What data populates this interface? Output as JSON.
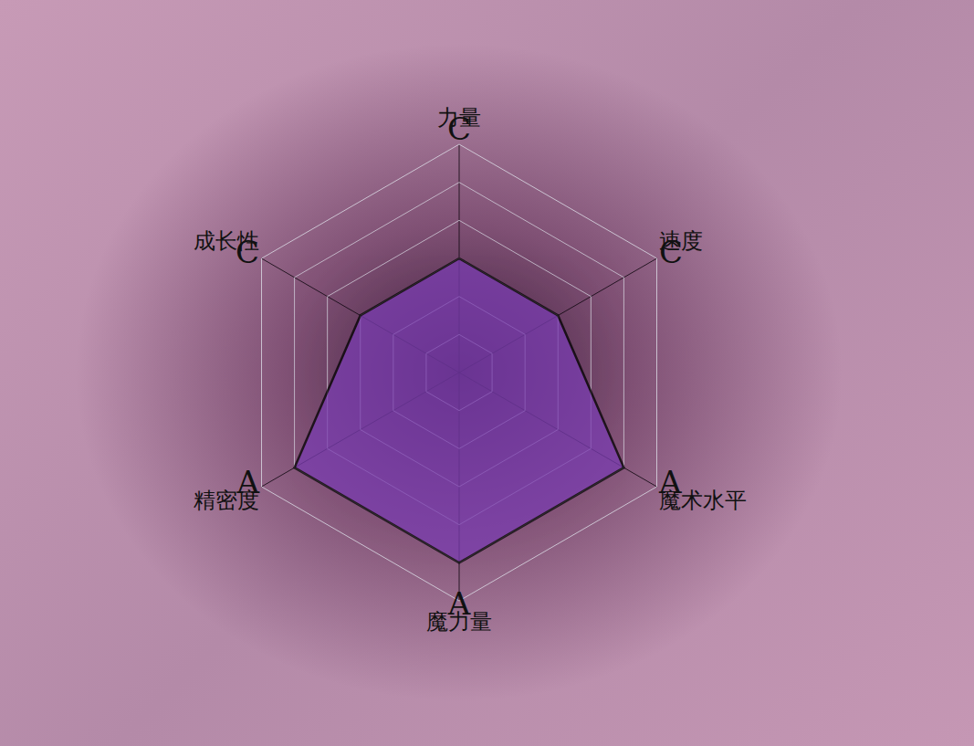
{
  "chart_data": {
    "type": "radar",
    "categories": [
      "力量",
      "速度",
      "魔术水平",
      "魔力量",
      "精密度",
      "成长性"
    ],
    "values": [
      3,
      3,
      5,
      5,
      5,
      3
    ],
    "value_labels": [
      "C",
      "C",
      "A",
      "A",
      "A",
      "C"
    ],
    "color": "#7a3cb0",
    "ylim": [
      0,
      6
    ],
    "yticks": [
      1,
      2,
      3,
      4,
      5,
      6
    ],
    "grid": true,
    "data_labels": true,
    "tick_labels": "x"
  }
}
